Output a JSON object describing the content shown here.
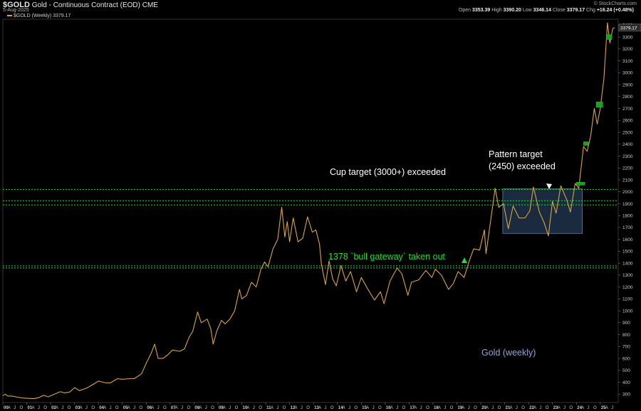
{
  "header": {
    "symbol": "$GOLD",
    "description": "Gold - Continuous Contract (EOD) CME",
    "date": "5-Aug-2025",
    "credit": "© StockCharts.com",
    "open_label": "Open",
    "open": "3353.39",
    "high_label": "High",
    "high": "3390.20",
    "low_label": "Low",
    "low": "3346.14",
    "close_label": "Close",
    "close": "3379.17",
    "chg_label": "Chg",
    "chg": "+16.24 (+0.48%)"
  },
  "legend_text": "$GOLD (Weekly) 3379.17",
  "price_tag": "3379.17",
  "chart_data": {
    "type": "line",
    "title": "Gold (weekly)",
    "ylim": [
      230,
      3450
    ],
    "yticks": [
      300,
      400,
      500,
      600,
      700,
      800,
      900,
      1000,
      1100,
      1200,
      1300,
      1400,
      1500,
      1600,
      1700,
      1800,
      1900,
      2000,
      2100,
      2200,
      2300,
      2400,
      2500,
      2600,
      2700,
      2800,
      2900,
      3000,
      3100,
      3200,
      3300,
      3400
    ],
    "xlim": [
      2000.0,
      2025.75
    ],
    "x_ticks": [
      {
        "x": 2000.0,
        "label": "00",
        "major": true
      },
      {
        "x": 2001.0,
        "label": "01",
        "major": true
      },
      {
        "x": 2002.0,
        "label": "02",
        "major": true
      },
      {
        "x": 2003.0,
        "label": "03",
        "major": true
      },
      {
        "x": 2004.0,
        "label": "04",
        "major": true
      },
      {
        "x": 2005.0,
        "label": "05",
        "major": true
      },
      {
        "x": 2006.0,
        "label": "06",
        "major": true
      },
      {
        "x": 2007.0,
        "label": "07",
        "major": true
      },
      {
        "x": 2008.0,
        "label": "08",
        "major": true
      },
      {
        "x": 2009.0,
        "label": "09",
        "major": true
      },
      {
        "x": 2010.0,
        "label": "10",
        "major": true
      },
      {
        "x": 2011.0,
        "label": "11",
        "major": true
      },
      {
        "x": 2012.0,
        "label": "12",
        "major": true
      },
      {
        "x": 2013.0,
        "label": "13",
        "major": true
      },
      {
        "x": 2014.0,
        "label": "14",
        "major": true
      },
      {
        "x": 2015.0,
        "label": "15",
        "major": true
      },
      {
        "x": 2016.0,
        "label": "16",
        "major": true
      },
      {
        "x": 2017.0,
        "label": "17",
        "major": true
      },
      {
        "x": 2018.0,
        "label": "18",
        "major": true
      },
      {
        "x": 2019.0,
        "label": "19",
        "major": true
      },
      {
        "x": 2020.0,
        "label": "20",
        "major": true
      },
      {
        "x": 2021.0,
        "label": "21",
        "major": true
      },
      {
        "x": 2022.0,
        "label": "22",
        "major": true
      },
      {
        "x": 2023.0,
        "label": "23",
        "major": true
      },
      {
        "x": 2024.0,
        "label": "24",
        "major": true
      },
      {
        "x": 2025.0,
        "label": "25",
        "major": true
      }
    ],
    "minor_labels": [
      "A",
      "J",
      "O"
    ],
    "series": [
      {
        "color": "#d9a441",
        "points": [
          [
            2000.0,
            288
          ],
          [
            2000.1,
            300
          ],
          [
            2000.2,
            285
          ],
          [
            2000.4,
            283
          ],
          [
            2000.6,
            275
          ],
          [
            2000.8,
            268
          ],
          [
            2001.0,
            265
          ],
          [
            2001.3,
            262
          ],
          [
            2001.5,
            270
          ],
          [
            2001.7,
            290
          ],
          [
            2001.9,
            278
          ],
          [
            2002.1,
            295
          ],
          [
            2002.4,
            320
          ],
          [
            2002.6,
            310
          ],
          [
            2002.8,
            318
          ],
          [
            2003.0,
            355
          ],
          [
            2003.2,
            330
          ],
          [
            2003.5,
            350
          ],
          [
            2003.8,
            385
          ],
          [
            2004.0,
            410
          ],
          [
            2004.3,
            395
          ],
          [
            2004.5,
            395
          ],
          [
            2004.8,
            430
          ],
          [
            2005.0,
            425
          ],
          [
            2005.3,
            430
          ],
          [
            2005.5,
            430
          ],
          [
            2005.8,
            470
          ],
          [
            2006.0,
            560
          ],
          [
            2006.2,
            640
          ],
          [
            2006.35,
            720
          ],
          [
            2006.5,
            600
          ],
          [
            2006.7,
            600
          ],
          [
            2006.9,
            630
          ],
          [
            2007.1,
            670
          ],
          [
            2007.4,
            660
          ],
          [
            2007.6,
            680
          ],
          [
            2007.8,
            780
          ],
          [
            2007.95,
            830
          ],
          [
            2008.15,
            990
          ],
          [
            2008.3,
            900
          ],
          [
            2008.55,
            930
          ],
          [
            2008.7,
            850
          ],
          [
            2008.8,
            720
          ],
          [
            2008.95,
            830
          ],
          [
            2009.15,
            920
          ],
          [
            2009.3,
            890
          ],
          [
            2009.5,
            930
          ],
          [
            2009.7,
            1000
          ],
          [
            2009.9,
            1180
          ],
          [
            2010.0,
            1100
          ],
          [
            2010.2,
            1130
          ],
          [
            2010.4,
            1240
          ],
          [
            2010.6,
            1200
          ],
          [
            2010.8,
            1350
          ],
          [
            2010.95,
            1410
          ],
          [
            2011.1,
            1370
          ],
          [
            2011.3,
            1520
          ],
          [
            2011.5,
            1600
          ],
          [
            2011.6,
            1760
          ],
          [
            2011.67,
            1870
          ],
          [
            2011.8,
            1620
          ],
          [
            2011.9,
            1750
          ],
          [
            2012.0,
            1580
          ],
          [
            2012.15,
            1780
          ],
          [
            2012.35,
            1580
          ],
          [
            2012.55,
            1610
          ],
          [
            2012.75,
            1790
          ],
          [
            2012.95,
            1660
          ],
          [
            2013.1,
            1680
          ],
          [
            2013.25,
            1560
          ],
          [
            2013.33,
            1390
          ],
          [
            2013.5,
            1220
          ],
          [
            2013.65,
            1420
          ],
          [
            2013.8,
            1270
          ],
          [
            2013.95,
            1210
          ],
          [
            2014.15,
            1380
          ],
          [
            2014.35,
            1250
          ],
          [
            2014.55,
            1330
          ],
          [
            2014.8,
            1160
          ],
          [
            2015.0,
            1280
          ],
          [
            2015.25,
            1190
          ],
          [
            2015.55,
            1090
          ],
          [
            2015.8,
            1160
          ],
          [
            2015.95,
            1060
          ],
          [
            2016.2,
            1250
          ],
          [
            2016.5,
            1360
          ],
          [
            2016.7,
            1310
          ],
          [
            2016.95,
            1130
          ],
          [
            2017.1,
            1240
          ],
          [
            2017.4,
            1260
          ],
          [
            2017.7,
            1340
          ],
          [
            2017.95,
            1280
          ],
          [
            2018.1,
            1350
          ],
          [
            2018.35,
            1300
          ],
          [
            2018.65,
            1180
          ],
          [
            2018.85,
            1230
          ],
          [
            2019.05,
            1330
          ],
          [
            2019.3,
            1280
          ],
          [
            2019.5,
            1410
          ],
          [
            2019.7,
            1520
          ],
          [
            2019.95,
            1510
          ],
          [
            2020.15,
            1680
          ],
          [
            2020.22,
            1480
          ],
          [
            2020.4,
            1740
          ],
          [
            2020.6,
            2030
          ],
          [
            2020.75,
            1870
          ],
          [
            2020.95,
            1900
          ],
          [
            2021.15,
            1690
          ],
          [
            2021.35,
            1880
          ],
          [
            2021.6,
            1780
          ],
          [
            2021.85,
            1780
          ],
          [
            2022.05,
            1840
          ],
          [
            2022.2,
            2040
          ],
          [
            2022.45,
            1830
          ],
          [
            2022.65,
            1740
          ],
          [
            2022.83,
            1630
          ],
          [
            2023.0,
            1920
          ],
          [
            2023.15,
            1820
          ],
          [
            2023.35,
            2050
          ],
          [
            2023.6,
            1930
          ],
          [
            2023.75,
            1830
          ],
          [
            2023.95,
            2070
          ],
          [
            2024.1,
            2030
          ],
          [
            2024.3,
            2380
          ],
          [
            2024.45,
            2340
          ],
          [
            2024.6,
            2470
          ],
          [
            2024.75,
            2700
          ],
          [
            2024.87,
            2570
          ],
          [
            2025.0,
            2700
          ],
          [
            2025.15,
            2950
          ],
          [
            2025.3,
            3420
          ],
          [
            2025.4,
            3250
          ],
          [
            2025.52,
            3370
          ],
          [
            2025.6,
            3379
          ]
        ]
      }
    ],
    "hlines": [
      {
        "y": 1378,
        "color": "#22dd33"
      },
      {
        "y": 1360,
        "color": "#22dd33"
      },
      {
        "y": 2020,
        "color": "#22dd33"
      },
      {
        "y": 1925,
        "color": "#22dd33"
      },
      {
        "y": 1890,
        "color": "#22dd33"
      }
    ],
    "pattern_box": {
      "x0": 2020.92,
      "x1": 2024.25,
      "y0": 1650,
      "y1": 2025
    },
    "breakout_bars": [
      {
        "x0": 2024.0,
        "x1": 2024.35,
        "y0": 2060,
        "y1": 2080
      },
      {
        "x0": 2024.3,
        "x1": 2024.5,
        "y0": 2390,
        "y1": 2420
      },
      {
        "x0": 2024.83,
        "x1": 2025.1,
        "y0": 2710,
        "y1": 2755
      },
      {
        "x0": 2025.25,
        "x1": 2025.48,
        "y0": 3280,
        "y1": 3320
      }
    ],
    "annotations": [
      {
        "text": "Cup target (3000+) exceeded",
        "color": "#ffffff"
      },
      {
        "text": "Pattern target",
        "color": "#ffffff"
      },
      {
        "text": "(2450) exceeded",
        "color": "#ffffff"
      },
      {
        "text": "1378 `bull gateway` taken out",
        "color": "#22dd33"
      },
      {
        "text": "Gold (weekly)",
        "color": "#8ea6d6"
      }
    ]
  }
}
